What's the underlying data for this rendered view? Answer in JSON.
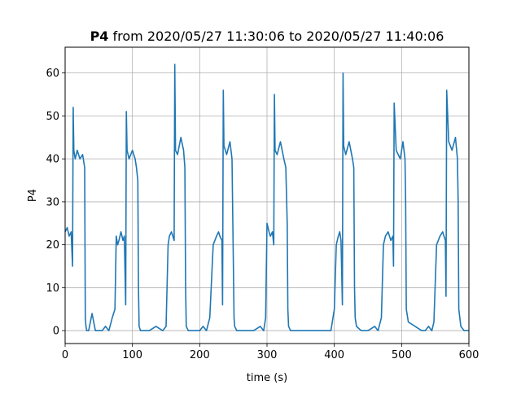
{
  "chart_data": {
    "type": "line",
    "title_bold": "P4",
    "title_rest": " from 2020/05/27 11:30:06 to 2020/05/27 11:40:06",
    "xlabel": "time (s)",
    "ylabel": "P4",
    "xlim": [
      0,
      600
    ],
    "ylim": [
      -3,
      66
    ],
    "xticks": [
      0,
      100,
      200,
      300,
      400,
      500,
      600
    ],
    "yticks": [
      0,
      10,
      20,
      30,
      40,
      50,
      60
    ],
    "grid": true,
    "line_color": "#1f77b4",
    "series": [
      {
        "x": [
          0,
          3,
          6,
          9,
          11,
          12,
          13,
          15,
          18,
          22,
          26,
          29,
          30,
          31,
          32,
          35,
          40,
          45,
          50,
          55,
          60,
          65,
          70,
          74,
          76,
          78,
          80,
          83,
          86,
          88,
          90,
          91,
          92,
          95,
          100,
          104,
          106,
          108,
          109,
          110,
          112,
          118,
          125,
          135,
          145,
          150,
          153,
          155,
          158,
          160,
          162,
          163,
          164,
          167,
          172,
          176,
          178,
          179,
          180,
          183,
          190,
          200,
          205,
          210,
          215,
          220,
          225,
          228,
          230,
          233,
          234,
          235,
          236,
          240,
          245,
          248,
          250,
          251,
          252,
          255,
          260,
          270,
          280,
          290,
          295,
          298,
          300,
          303,
          305,
          308,
          310,
          311,
          312,
          315,
          320,
          325,
          328,
          330,
          331,
          332,
          335,
          345,
          355,
          365,
          375,
          385,
          395,
          400,
          403,
          406,
          408,
          410,
          412,
          413,
          414,
          417,
          422,
          427,
          429,
          430,
          431,
          433,
          440,
          450,
          460,
          465,
          470,
          473,
          476,
          480,
          484,
          487,
          488,
          489,
          492,
          498,
          502,
          505,
          506,
          507,
          510,
          520,
          530,
          535,
          540,
          545,
          548,
          552,
          557,
          561,
          563,
          565,
          566,
          567,
          570,
          575,
          580,
          583,
          584,
          585,
          588,
          593,
          598,
          600
        ],
        "y": [
          23,
          24,
          22,
          23,
          15,
          52,
          42,
          40,
          42,
          40,
          41,
          38,
          3,
          1,
          0,
          0,
          4,
          0,
          0,
          0,
          1,
          0,
          3,
          5,
          22,
          20,
          21,
          23,
          21,
          22,
          6,
          51,
          42,
          40,
          42,
          40,
          38,
          35,
          10,
          1,
          0,
          0,
          0,
          1,
          0,
          1,
          20,
          22,
          23,
          22,
          21,
          62,
          42,
          41,
          45,
          42,
          38,
          10,
          1,
          0,
          0,
          0,
          1,
          0,
          3,
          20,
          22,
          23,
          22,
          21,
          6,
          56,
          43,
          41,
          44,
          40,
          15,
          3,
          1,
          0,
          0,
          0,
          0,
          1,
          0,
          3,
          25,
          23,
          22,
          23,
          20,
          55,
          42,
          41,
          44,
          40,
          38,
          25,
          5,
          1,
          0,
          0,
          0,
          0,
          0,
          0,
          0,
          5,
          20,
          22,
          23,
          21,
          6,
          60,
          43,
          41,
          44,
          40,
          38,
          10,
          3,
          1,
          0,
          0,
          1,
          0,
          3,
          20,
          22,
          23,
          21,
          22,
          15,
          53,
          42,
          40,
          44,
          40,
          30,
          5,
          2,
          1,
          0,
          0,
          1,
          0,
          2,
          20,
          22,
          23,
          22,
          21,
          8,
          56,
          44,
          42,
          45,
          40,
          30,
          5,
          1,
          0,
          0,
          0
        ]
      }
    ]
  }
}
